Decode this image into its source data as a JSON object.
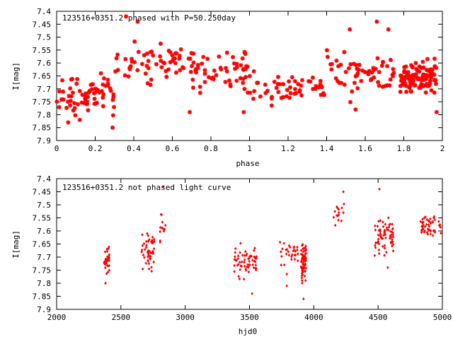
{
  "chart_data": [
    {
      "type": "scatter",
      "title": "123516+0351.2 phased with P=50.250day",
      "xlabel": "phase",
      "ylabel": "I[mag]",
      "xlim": [
        0,
        2
      ],
      "ylim": [
        7.4,
        7.9
      ],
      "y_inverted": true,
      "x_ticks": [
        "0",
        "0.2",
        "0.4",
        "0.6",
        "0.8",
        "1",
        "1.2",
        "1.4",
        "1.6",
        "1.8",
        "2"
      ],
      "y_ticks": [
        "7.4",
        "7.45",
        "7.5",
        "7.55",
        "7.6",
        "7.65",
        "7.7",
        "7.75",
        "7.8",
        "7.85",
        "7.9"
      ],
      "marker": "asterisk",
      "color": "#ff0000",
      "grid": false,
      "clusters": [
        {
          "x": [
            0.0,
            0.3
          ],
          "y_center": 7.72,
          "y_spread": 0.06,
          "count": 70
        },
        {
          "x": [
            0.3,
            0.7
          ],
          "y_center": 7.6,
          "y_spread": 0.06,
          "count": 60
        },
        {
          "x": [
            0.7,
            1.0
          ],
          "y_center": 7.64,
          "y_spread": 0.06,
          "count": 55
        },
        {
          "x": [
            1.0,
            1.4
          ],
          "y_center": 7.7,
          "y_spread": 0.05,
          "count": 55
        },
        {
          "x": [
            1.4,
            1.75
          ],
          "y_center": 7.64,
          "y_spread": 0.07,
          "count": 60
        },
        {
          "x": [
            1.78,
            1.97
          ],
          "y_center": 7.66,
          "y_spread": 0.05,
          "count": 110
        }
      ],
      "points": [
        {
          "x": 0.42,
          "y": 7.44
        },
        {
          "x": 0.36,
          "y": 7.42
        },
        {
          "x": 1.52,
          "y": 7.47
        },
        {
          "x": 1.66,
          "y": 7.44
        },
        {
          "x": 1.72,
          "y": 7.47
        },
        {
          "x": 0.29,
          "y": 7.85
        },
        {
          "x": 0.06,
          "y": 7.83
        },
        {
          "x": 0.69,
          "y": 7.79
        },
        {
          "x": 0.12,
          "y": 7.82
        },
        {
          "x": 0.97,
          "y": 7.79
        },
        {
          "x": 1.55,
          "y": 7.78
        },
        {
          "x": 1.97,
          "y": 7.79
        }
      ]
    },
    {
      "type": "scatter",
      "title": "123516+0351.2 not phased light curve",
      "xlabel": "hjd0",
      "ylabel": "I[mag]",
      "xlim": [
        2000,
        5000
      ],
      "ylim": [
        7.4,
        7.9
      ],
      "y_inverted": true,
      "x_ticks": [
        "2000",
        "2500",
        "3000",
        "3500",
        "4000",
        "4500",
        "5000"
      ],
      "y_ticks": [
        "7.4",
        "7.45",
        "7.5",
        "7.55",
        "7.6",
        "7.65",
        "7.7",
        "7.75",
        "7.8",
        "7.85",
        "7.9"
      ],
      "marker": "diamond",
      "color": "#ff0000",
      "grid": false,
      "clusters": [
        {
          "x": [
            2370,
            2410
          ],
          "y_center": 7.71,
          "y_spread": 0.04,
          "count": 35
        },
        {
          "x": [
            2660,
            2760
          ],
          "y_center": 7.67,
          "y_spread": 0.06,
          "count": 50
        },
        {
          "x": [
            2800,
            2850
          ],
          "y_center": 7.58,
          "y_spread": 0.05,
          "count": 12
        },
        {
          "x": [
            3380,
            3560
          ],
          "y_center": 7.71,
          "y_spread": 0.05,
          "count": 60
        },
        {
          "x": [
            3730,
            3880
          ],
          "y_center": 7.69,
          "y_spread": 0.05,
          "count": 30
        },
        {
          "x": [
            3900,
            3940
          ],
          "y_center": 7.72,
          "y_spread": 0.06,
          "count": 70
        },
        {
          "x": [
            4150,
            4250
          ],
          "y_center": 7.53,
          "y_spread": 0.04,
          "count": 15
        },
        {
          "x": [
            4470,
            4620
          ],
          "y_center": 7.62,
          "y_spread": 0.05,
          "count": 70
        },
        {
          "x": [
            4830,
            4990
          ],
          "y_center": 7.58,
          "y_spread": 0.03,
          "count": 50
        }
      ],
      "points": [
        {
          "x": 2830,
          "y": 7.43
        },
        {
          "x": 4230,
          "y": 7.45
        },
        {
          "x": 4510,
          "y": 7.44
        },
        {
          "x": 3920,
          "y": 7.86
        },
        {
          "x": 3520,
          "y": 7.84
        },
        {
          "x": 2380,
          "y": 7.8
        },
        {
          "x": 4575,
          "y": 7.74
        },
        {
          "x": 3790,
          "y": 7.81
        }
      ]
    }
  ]
}
